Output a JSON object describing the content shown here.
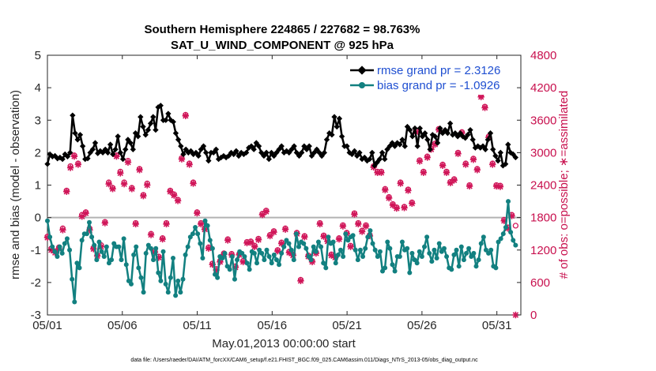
{
  "chart_data": {
    "type": "line",
    "title": "Southern Hemisphere 224865 / 227682 = 98.763%",
    "subtitle": "SAT_U_WIND_COMPONENT @ 925 hPa",
    "xlabel": "May.01,2013 00:00:00 start",
    "ylabel": "rmse and bias (model - observation)",
    "ylabel_right": "# of obs: o=possible; ∗=assimilated",
    "ylim": [
      -3,
      5
    ],
    "ylim_right": [
      0,
      4800
    ],
    "xlim": [
      0,
      31.6
    ],
    "yticks": [
      "-3",
      "-2",
      "-1",
      "0",
      "1",
      "2",
      "3",
      "4",
      "5"
    ],
    "yticks_right": [
      "0",
      "600",
      "1200",
      "1800",
      "2400",
      "3000",
      "3600",
      "4200",
      "4800"
    ],
    "xticks": [
      {
        "pos": 0,
        "label": "05/01"
      },
      {
        "pos": 5,
        "label": "05/06"
      },
      {
        "pos": 10,
        "label": "05/11"
      },
      {
        "pos": 15,
        "label": "05/16"
      },
      {
        "pos": 20,
        "label": "05/21"
      },
      {
        "pos": 25,
        "label": "05/26"
      },
      {
        "pos": 30,
        "label": "05/31"
      }
    ],
    "zero_line": 0,
    "series": [
      {
        "name": "rmse grand pr = 2.3126",
        "color": "#000000",
        "marker": "diamond",
        "values": [
          1.65,
          1.95,
          1.88,
          1.9,
          1.82,
          1.85,
          1.8,
          1.95,
          1.88,
          2.0,
          3.15,
          2.6,
          2.4,
          2.55,
          2.2,
          1.8,
          1.82,
          2.0,
          2.1,
          2.3,
          1.98,
          2.05,
          2.0,
          2.1,
          2.0,
          2.25,
          1.95,
          2.1,
          2.5,
          2.0,
          1.8,
          2.1,
          2.4,
          2.3,
          2.1,
          2.6,
          2.5,
          3.1,
          2.8,
          2.55,
          2.7,
          2.9,
          3.1,
          2.7,
          3.4,
          3.45,
          3.0,
          3.0,
          3.2,
          3.0,
          2.95,
          2.6,
          2.4,
          2.2,
          1.95,
          2.1,
          2.0,
          2.05,
          1.95,
          2.0,
          1.9,
          2.1,
          2.2,
          2.0,
          1.75,
          2.0,
          2.0,
          2.1,
          1.8,
          1.85,
          1.9,
          1.85,
          1.9,
          2.0,
          1.95,
          2.05,
          1.9,
          2.0,
          1.95,
          2.0,
          2.15,
          2.2,
          2.1,
          2.3,
          2.2,
          2.0,
          1.9,
          2.0,
          1.8,
          2.0,
          1.9,
          2.0,
          2.1,
          2.2,
          2.0,
          2.05,
          2.0,
          2.1,
          2.2,
          2.0,
          1.9,
          2.0,
          2.2,
          2.1,
          2.2,
          1.9,
          2.0,
          2.1,
          2.0,
          1.9,
          2.0,
          2.4,
          2.6,
          2.55,
          3.1,
          2.8,
          3.05,
          2.5,
          2.2,
          2.2,
          2.0,
          1.95,
          2.05,
          1.9,
          2.0,
          1.8,
          1.85,
          1.75,
          1.8,
          2.0,
          1.6,
          1.7,
          1.8,
          2.0,
          1.8,
          2.1,
          2.2,
          2.3,
          2.2,
          2.3,
          2.25,
          2.4,
          2.2,
          2.8,
          2.7,
          2.5,
          2.75,
          2.2,
          2.75,
          2.5,
          2.6,
          2.4,
          2.1,
          2.55,
          2.5,
          2.3,
          2.75,
          2.6,
          2.7,
          2.6,
          2.9,
          2.55,
          2.6,
          2.5,
          2.6,
          2.5,
          2.45,
          2.55,
          2.7,
          2.4,
          2.15,
          2.2,
          2.15,
          2.2,
          2.1,
          2.4,
          2.6,
          2.1,
          1.9,
          1.75,
          2.0,
          1.6,
          1.65,
          2.25,
          2.0,
          1.95,
          1.85
        ]
      },
      {
        "name": "bias grand pr = -1.0926",
        "color": "#128080",
        "marker": "circle",
        "values": [
          -0.1,
          -0.6,
          -0.9,
          -1.05,
          -1.2,
          -0.9,
          -1.1,
          -0.8,
          -0.65,
          -1.0,
          -1.9,
          -2.6,
          -1.4,
          -1.55,
          -0.7,
          -0.5,
          -0.5,
          -0.15,
          -0.6,
          -0.85,
          -1.3,
          -0.75,
          -1.05,
          -1.2,
          -0.9,
          -1.4,
          -1.3,
          -0.8,
          -0.9,
          -0.9,
          -1.3,
          -0.65,
          -1.45,
          -1.95,
          -2.05,
          -1.15,
          -0.9,
          -1.55,
          -1.85,
          -2.3,
          -1.1,
          -0.85,
          -0.95,
          -1.3,
          -0.95,
          -1.7,
          -1.95,
          -1.05,
          -2.05,
          -2.3,
          -1.85,
          -1.25,
          -2.4,
          -1.95,
          -2.3,
          -1.9,
          -1.15,
          -0.9,
          -0.6,
          -0.5,
          -0.3,
          -0.5,
          -0.8,
          -1.25,
          -0.1,
          -0.25,
          -0.7,
          -0.95,
          -1.75,
          -1.85,
          -1.2,
          -1.25,
          -1.1,
          -1.5,
          -1.6,
          -1.2,
          -1.9,
          -1.3,
          -1.05,
          -1.1,
          -1.2,
          -1.4,
          -1.6,
          -1.05,
          -1.1,
          -1.4,
          -1.0,
          -1.1,
          -1.3,
          -1.0,
          -1.2,
          -1.4,
          -1.15,
          -1.3,
          -1.45,
          -1.1,
          -0.9,
          -0.7,
          -0.8,
          -1.0,
          -1.3,
          -0.5,
          -0.9,
          -0.75,
          -0.8,
          -0.95,
          -1.2,
          -1.3,
          -0.9,
          -1.05,
          -0.75,
          -0.9,
          -1.4,
          -1.55,
          -0.6,
          -0.8,
          -0.75,
          -1.4,
          -1.15,
          -1.0,
          -1.2,
          -0.5,
          -0.7,
          -0.6,
          -0.55,
          -1.0,
          -1.3,
          -1.0,
          -1.2,
          -0.95,
          -0.6,
          -0.4,
          -0.8,
          -1.0,
          -1.2,
          -1.05,
          -1.65,
          -1.55,
          -0.75,
          -0.95,
          -1.45,
          -1.65,
          -1.2,
          -1.2,
          -0.75,
          -1.0,
          -0.95,
          -1.7,
          -1.1,
          -1.3,
          -1.4,
          -1.05,
          -1.2,
          -0.9,
          -0.6,
          -1.1,
          -1.35,
          -1.0,
          -1.25,
          -0.8,
          -1.05,
          -0.95,
          -1.2,
          -1.55,
          -1.6,
          -1.15,
          -1.0,
          -1.5,
          -0.9,
          -1.3,
          -1.1,
          -0.95,
          -1.2,
          -1.1,
          -1.5,
          -1.3,
          -0.8,
          -0.6,
          -1.0,
          -1.1,
          -1.0,
          -1.5,
          -1.55,
          -0.75,
          -0.65,
          -0.5,
          -0.3,
          0.5,
          -0.45,
          -0.7,
          -0.85
        ]
      }
    ],
    "obs_possible": [
      1450,
      1230,
      1180,
      1250,
      1600,
      2300,
      2750,
      2950,
      2800,
      1850,
      1900,
      1600,
      1240,
      1110,
      1290,
      1720,
      2450,
      2350,
      2950,
      2650,
      2450,
      2850,
      2350,
      1700,
      2700,
      2220,
      2430,
      1500,
      1180,
      1080,
      1420,
      1700,
      2300,
      2230,
      2130,
      2900,
      3700,
      2800,
      2450,
      1900,
      1700,
      1600,
      1250,
      950,
      850,
      1000,
      1140,
      1400,
      1130,
      900,
      1130,
      1000,
      1350,
      1360,
      1280,
      1410,
      1870,
      1930,
      1480,
      1550,
      1200,
      1340,
      1600,
      1170,
      1120,
      1520,
      650,
      1460,
      1100,
      1000,
      1160,
      1700,
      1470,
      1380,
      1120,
      1080,
      1420,
      1660,
      1520,
      1280,
      1880,
      1700,
      1560,
      1660,
      1480,
      2750,
      2650,
      2650,
      2330,
      2180,
      2050,
      1990,
      2450,
      2000,
      2320,
      2080,
      3400,
      2860,
      2650,
      2930,
      3080,
      3170,
      3440,
      2780,
      2650,
      2460,
      2510,
      3000,
      3380,
      2800,
      2400,
      2890,
      2700,
      4050,
      3850,
      3300,
      2800,
      2400,
      2390,
      1760,
      1620,
      1850,
      1650
    ],
    "obs_assimilated": [
      1430,
      1200,
      1150,
      1220,
      1570,
      2280,
      2720,
      2930,
      2780,
      1820,
      1880,
      1570,
      1220,
      1090,
      1260,
      1700,
      2420,
      2330,
      2930,
      2620,
      2420,
      2820,
      2330,
      1680,
      2680,
      2200,
      2400,
      1480,
      1160,
      1060,
      1400,
      1680,
      2280,
      2210,
      2110,
      2880,
      3680,
      2780,
      2430,
      1880,
      1680,
      1580,
      1230,
      930,
      830,
      980,
      1120,
      1380,
      1110,
      880,
      1110,
      980,
      1330,
      1340,
      1260,
      1390,
      1850,
      1910,
      1460,
      1530,
      1180,
      1320,
      1580,
      1150,
      1100,
      1500,
      630,
      1440,
      1080,
      980,
      1140,
      1680,
      1450,
      1360,
      1100,
      1060,
      1400,
      1640,
      1500,
      1260,
      1860,
      1680,
      1540,
      1640,
      1460,
      2730,
      2630,
      2630,
      2310,
      2160,
      2030,
      1970,
      2430,
      1980,
      2300,
      2060,
      3380,
      2840,
      2630,
      2910,
      3060,
      3150,
      3420,
      2760,
      2630,
      2440,
      2490,
      2980,
      3360,
      2780,
      2380,
      2870,
      2680,
      4030,
      3830,
      3280,
      2780,
      2380,
      2370,
      1740,
      1600,
      1830,
      0
    ],
    "footer": "data file: /Users/raeder/DAI/ATM_forcXX/CAM6_setup/f.e21.FHIST_BGC.f09_025.CAM6assim.011/Diags_NTrS_2013-05/obs_diag_output.nc",
    "colors": {
      "axis": "#262626",
      "right_axis": "#c8104e",
      "obs": "#d01659",
      "zero_line": "#b3b3b3",
      "legend_text": "#1f4fd1"
    }
  }
}
